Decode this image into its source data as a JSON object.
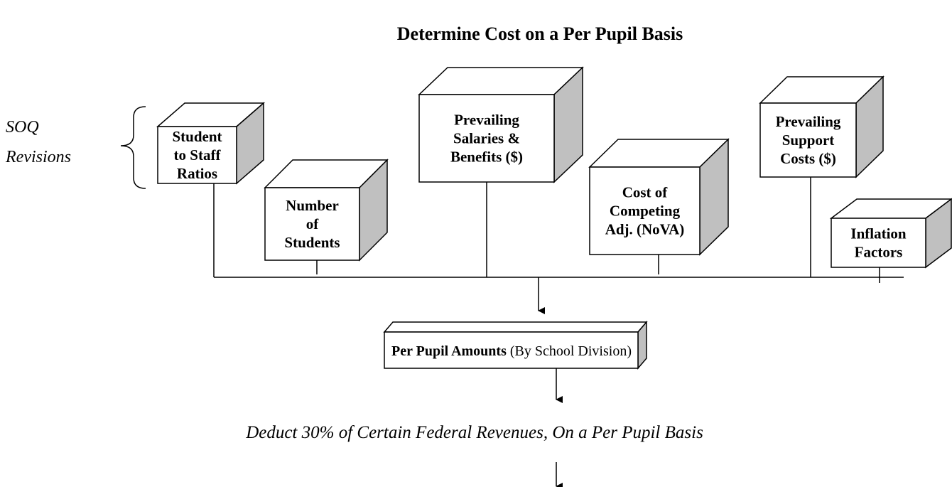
{
  "title": "Determine Cost on a Per Pupil Basis",
  "side_label": {
    "lines": [
      "SOQ",
      "Revisions"
    ]
  },
  "boxes": [
    {
      "lines": [
        "Student",
        "to Staff",
        "Ratios"
      ]
    },
    {
      "lines": [
        "Number",
        "of",
        "Students"
      ]
    },
    {
      "lines": [
        "Prevailing",
        "Salaries &",
        "Benefits ($)"
      ]
    },
    {
      "lines": [
        "Cost of",
        "Competing",
        "Adj. (NoVA)"
      ]
    },
    {
      "lines": [
        "Prevailing",
        "Support",
        "Costs ($)"
      ]
    },
    {
      "lines": [
        "Inflation",
        "Factors"
      ]
    }
  ],
  "result_box": {
    "bold": "Per Pupil Amounts",
    "normal": " (By School Division)"
  },
  "footer": "Deduct 30% of Certain Federal Revenues, On a Per Pupil Basis"
}
